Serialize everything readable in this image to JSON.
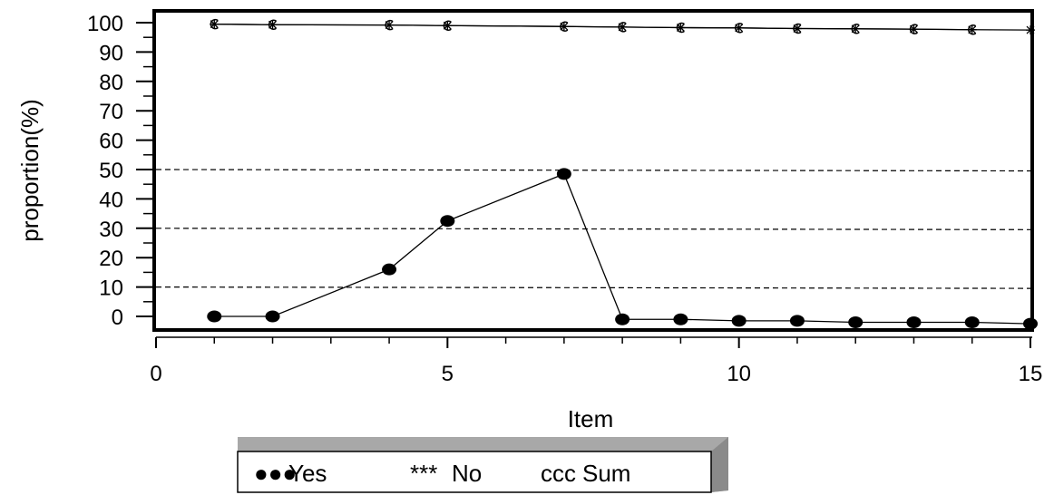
{
  "chart_data": {
    "type": "line",
    "xlabel": "Item",
    "ylabel": "proportion(%)",
    "xlim": [
      0,
      15
    ],
    "ylim": [
      0,
      100
    ],
    "x_ticks": [
      "0",
      "5",
      "10",
      "15"
    ],
    "y_ticks": [
      "0",
      "10",
      "20",
      "30",
      "40",
      "50",
      "60",
      "70",
      "80",
      "90",
      "100"
    ],
    "reference_lines": [
      10,
      30,
      50
    ],
    "legend_position": "bottom",
    "series": [
      {
        "name": "Yes",
        "marker_glyph": "●●●",
        "marker": "filled-circle",
        "color": "#000000",
        "x": [
          1,
          2,
          4,
          5,
          7,
          8,
          9,
          10,
          11,
          12,
          13,
          14,
          15
        ],
        "y": [
          0,
          0,
          16,
          32.5,
          48.5,
          -1,
          -1,
          -1.5,
          -1.5,
          -2,
          -2,
          -2,
          -2.5
        ]
      },
      {
        "name": "No",
        "marker_glyph": "***",
        "marker": "asterisk",
        "color": "#000000",
        "x": [
          1,
          2,
          4,
          5,
          7,
          8,
          9,
          10,
          11,
          12,
          13,
          14,
          15
        ],
        "y": [
          99.5,
          99.3,
          99.2,
          99,
          98.7,
          98.5,
          98.3,
          98.2,
          98,
          97.9,
          97.8,
          97.6,
          97.5
        ]
      },
      {
        "name": "Sum",
        "marker_glyph": "ccc",
        "marker": "c-symbol",
        "color": "#000000",
        "x": [
          1,
          2,
          4,
          5,
          7,
          8,
          9,
          10,
          11,
          12,
          13,
          14
        ],
        "y": [
          99.5,
          99.3,
          99.2,
          99,
          98.7,
          98.5,
          98.3,
          98.2,
          98,
          97.9,
          97.8,
          97.6
        ]
      }
    ]
  }
}
